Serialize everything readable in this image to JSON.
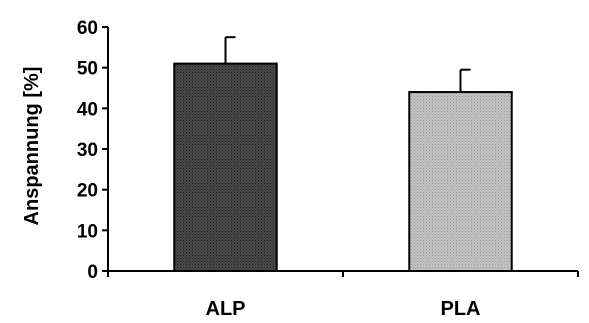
{
  "chart_data": {
    "type": "bar",
    "categories": [
      "ALP",
      "PLA"
    ],
    "values": [
      51,
      44
    ],
    "errors": [
      6.5,
      5.5
    ],
    "ylabel": "Anspannung [%]",
    "xlabel": "",
    "ylim": [
      0,
      60
    ],
    "yticks": [
      0,
      10,
      20,
      30,
      40,
      50,
      60
    ],
    "grid": false,
    "legend": "none",
    "bar_colors": [
      "#3a3a3a",
      "#b4b4b4"
    ],
    "bar_stroke": "#000000",
    "error_bar_style": "upper-cap-only"
  }
}
